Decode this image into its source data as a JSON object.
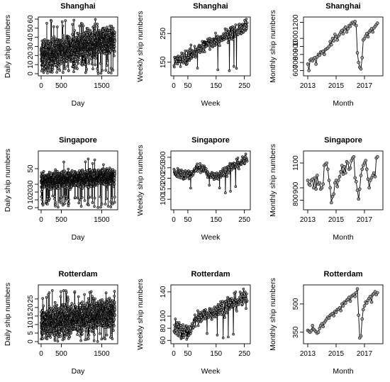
{
  "chart_data": [
    {
      "type": "line",
      "title": "Shanghai",
      "xlabel": "Day",
      "ylabel": "Daily ship numbers",
      "xlim": [
        0,
        1826
      ],
      "ylim": [
        0,
        60
      ],
      "xticks": [
        {
          "v": 0,
          "label": "0"
        },
        {
          "v": 500,
          "label": "500"
        },
        {
          "v": 1500,
          "label": "1500"
        }
      ],
      "yticks": [
        {
          "v": 0,
          "label": "0"
        },
        {
          "v": 10,
          "label": "10"
        },
        {
          "v": 20,
          "label": "20"
        },
        {
          "v": 30,
          "label": "30"
        },
        {
          "v": 40,
          "label": "40"
        },
        {
          "v": 50,
          "label": "50"
        },
        {
          "v": 60,
          "label": "60"
        }
      ],
      "series": [
        {
          "n": 1826,
          "x_start": 1,
          "x_step": 1,
          "trend": [
            [
              0,
              20
            ],
            [
              1826,
              38
            ]
          ],
          "noise": 7,
          "drop_chance": 0.03,
          "drop_to": [
            0,
            12
          ],
          "spike_chance": 0.01,
          "spike_to": [
            50,
            60
          ]
        }
      ]
    },
    {
      "type": "line",
      "title": "Shanghai",
      "xlabel": "Week",
      "ylabel": "Weekly ship numbers",
      "xlim": [
        0,
        261
      ],
      "ylim": [
        110,
        300
      ],
      "xticks": [
        {
          "v": 0,
          "label": "0"
        },
        {
          "v": 50,
          "label": "50"
        },
        {
          "v": 150,
          "label": "150"
        },
        {
          "v": 250,
          "label": "250"
        }
      ],
      "yticks": [
        {
          "v": 150,
          "label": "150"
        },
        {
          "v": 250,
          "label": "250"
        }
      ],
      "series": [
        {
          "n": 260,
          "x_start": 1,
          "x_step": 1,
          "trend": [
            [
              0,
              150
            ],
            [
              40,
              165
            ],
            [
              130,
              220
            ],
            [
              200,
              250
            ],
            [
              260,
              275
            ]
          ],
          "noise": 12,
          "drop_chance": 0.02,
          "drop_to": [
            120,
            145
          ],
          "spike_chance": 0.0,
          "spike_to": [
            0,
            0
          ]
        }
      ]
    },
    {
      "type": "line",
      "title": "Shanghai",
      "xlabel": "Month",
      "ylabel": "Monthly ship numbers",
      "xlim": [
        2012.9,
        2018.1
      ],
      "ylim": [
        560,
        1240
      ],
      "xticks": [
        {
          "v": 2013,
          "label": "2013"
        },
        {
          "v": 2015,
          "label": "2015"
        },
        {
          "v": 2017,
          "label": "2017"
        }
      ],
      "yticks": [
        {
          "v": 600,
          "label": "600"
        },
        {
          "v": 700,
          "label": "700"
        },
        {
          "v": 800,
          "label": "800"
        },
        {
          "v": 900,
          "label": "900"
        },
        {
          "v": 1000,
          "label": "1000"
        },
        {
          "v": 1200,
          "label": "1200"
        }
      ],
      "series": [
        {
          "x": [
            2013.0,
            2013.083,
            2013.167,
            2013.25,
            2013.333,
            2013.417,
            2013.5,
            2013.583,
            2013.667,
            2013.75,
            2013.833,
            2013.917,
            2014.0,
            2014.083,
            2014.167,
            2014.25,
            2014.333,
            2014.417,
            2014.5,
            2014.583,
            2014.667,
            2014.75,
            2014.833,
            2014.917,
            2015.0,
            2015.083,
            2015.167,
            2015.25,
            2015.333,
            2015.417,
            2015.5,
            2015.583,
            2015.667,
            2015.75,
            2015.833,
            2015.917,
            2016.0,
            2016.083,
            2016.167,
            2016.25,
            2016.333,
            2016.417,
            2016.5,
            2016.583,
            2016.667,
            2016.75,
            2016.833,
            2016.917,
            2017.0,
            2017.083,
            2017.167,
            2017.25,
            2017.333,
            2017.417,
            2017.5,
            2017.583,
            2017.667,
            2017.75,
            2017.833,
            2017.917
          ],
          "values": [
            680,
            600,
            730,
            740,
            720,
            750,
            760,
            680,
            770,
            800,
            790,
            830,
            820,
            840,
            800,
            860,
            870,
            880,
            900,
            960,
            920,
            1000,
            970,
            1050,
            1020,
            980,
            1030,
            1050,
            1080,
            1100,
            1060,
            1120,
            1140,
            1080,
            1120,
            1160,
            1150,
            1190,
            1200,
            1180,
            1210,
            1160,
            820,
            700,
            640,
            620,
            760,
            980,
            1000,
            1030,
            1060,
            1020,
            1080,
            1100,
            1120,
            1080,
            1130,
            1150,
            1170,
            1190
          ]
        }
      ]
    },
    {
      "type": "line",
      "title": "Singapore",
      "xlabel": "Day",
      "ylabel": "Daily ship numbers",
      "xlim": [
        0,
        1826
      ],
      "ylim": [
        0,
        70
      ],
      "xticks": [
        {
          "v": 0,
          "label": "0"
        },
        {
          "v": 500,
          "label": "500"
        },
        {
          "v": 1500,
          "label": "1500"
        }
      ],
      "yticks": [
        {
          "v": 0,
          "label": "0"
        },
        {
          "v": 10,
          "label": "10"
        },
        {
          "v": 20,
          "label": "20"
        },
        {
          "v": 30,
          "label": "30"
        },
        {
          "v": 50,
          "label": "50"
        }
      ],
      "series": [
        {
          "n": 1826,
          "x_start": 1,
          "x_step": 1,
          "trend": [
            [
              0,
              34
            ],
            [
              1826,
              40
            ]
          ],
          "noise": 5,
          "drop_chance": 0.03,
          "drop_to": [
            0,
            15
          ],
          "spike_chance": 0.003,
          "spike_to": [
            55,
            68
          ]
        }
      ]
    },
    {
      "type": "line",
      "title": "Singapore",
      "xlabel": "Week",
      "ylabel": "Weekly ship numbers",
      "xlim": [
        0,
        261
      ],
      "ylim": [
        60,
        320
      ],
      "xticks": [
        {
          "v": 0,
          "label": "0"
        },
        {
          "v": 50,
          "label": "50"
        },
        {
          "v": 150,
          "label": "150"
        },
        {
          "v": 250,
          "label": "250"
        }
      ],
      "yticks": [
        {
          "v": 100,
          "label": "100"
        },
        {
          "v": 150,
          "label": "150"
        },
        {
          "v": 200,
          "label": "200"
        },
        {
          "v": 250,
          "label": "250"
        },
        {
          "v": 300,
          "label": "300"
        }
      ],
      "series": [
        {
          "n": 260,
          "x_start": 1,
          "x_step": 1,
          "trend": [
            [
              0,
              225
            ],
            [
              60,
              215
            ],
            [
              80,
              250
            ],
            [
              110,
              245
            ],
            [
              120,
              215
            ],
            [
              160,
              215
            ],
            [
              200,
              250
            ],
            [
              260,
              290
            ]
          ],
          "noise": 12,
          "drop_chance": 0.02,
          "drop_to": [
            120,
            170
          ],
          "spike_chance": 0.0,
          "spike_to": [
            0,
            0
          ]
        }
      ]
    },
    {
      "type": "line",
      "title": "Singapore",
      "xlabel": "Month",
      "ylabel": "Monthly ship numbers",
      "xlim": [
        2012.9,
        2018.1
      ],
      "ylim": [
        740,
        1180
      ],
      "xticks": [
        {
          "v": 2013,
          "label": "2013"
        },
        {
          "v": 2015,
          "label": "2015"
        },
        {
          "v": 2017,
          "label": "2017"
        }
      ],
      "yticks": [
        {
          "v": 800,
          "label": "800"
        },
        {
          "v": 900,
          "label": "900"
        },
        {
          "v": 1100,
          "label": "1100"
        }
      ],
      "series": [
        {
          "x": [
            2013.0,
            2013.083,
            2013.167,
            2013.25,
            2013.333,
            2013.417,
            2013.5,
            2013.583,
            2013.667,
            2013.75,
            2013.833,
            2013.917,
            2014.0,
            2014.083,
            2014.167,
            2014.25,
            2014.333,
            2014.417,
            2014.5,
            2014.583,
            2014.667,
            2014.75,
            2014.833,
            2014.917,
            2015.0,
            2015.083,
            2015.167,
            2015.25,
            2015.333,
            2015.417,
            2015.5,
            2015.583,
            2015.667,
            2015.75,
            2015.833,
            2015.917,
            2016.0,
            2016.083,
            2016.167,
            2016.25,
            2016.333,
            2016.417,
            2016.5,
            2016.583,
            2016.667,
            2016.75,
            2016.833,
            2016.917,
            2017.0,
            2017.083,
            2017.167,
            2017.25,
            2017.333,
            2017.417,
            2017.5,
            2017.583,
            2017.667,
            2017.75,
            2017.833,
            2017.917
          ],
          "values": [
            960,
            930,
            920,
            960,
            970,
            900,
            980,
            890,
            1000,
            930,
            940,
            890,
            900,
            930,
            1080,
            1090,
            1100,
            1050,
            960,
            900,
            780,
            830,
            850,
            940,
            960,
            910,
            960,
            990,
            1030,
            1080,
            1010,
            1070,
            1020,
            1110,
            1100,
            1050,
            1060,
            1120,
            1140,
            1150,
            980,
            950,
            880,
            810,
            890,
            1000,
            1050,
            1080,
            1100,
            1120,
            1050,
            970,
            900,
            960,
            980,
            1000,
            1020,
            990,
            1140,
            1150
          ]
        }
      ]
    },
    {
      "type": "line",
      "title": "Rotterdam",
      "xlabel": "Day",
      "ylabel": "Daily ship numbers",
      "xlim": [
        0,
        1826
      ],
      "ylim": [
        0,
        32
      ],
      "xticks": [
        {
          "v": 0,
          "label": "0"
        },
        {
          "v": 500,
          "label": "500"
        },
        {
          "v": 1500,
          "label": "1500"
        }
      ],
      "yticks": [
        {
          "v": 0,
          "label": "0"
        },
        {
          "v": 5,
          "label": "5"
        },
        {
          "v": 10,
          "label": "10"
        },
        {
          "v": 15,
          "label": "15"
        },
        {
          "v": 20,
          "label": "20"
        },
        {
          "v": 25,
          "label": "25"
        }
      ],
      "series": [
        {
          "n": 1826,
          "x_start": 1,
          "x_step": 1,
          "trend": [
            [
              0,
              11
            ],
            [
              1826,
              17
            ]
          ],
          "noise": 4,
          "drop_chance": 0.02,
          "drop_to": [
            0,
            5
          ],
          "spike_chance": 0.01,
          "spike_to": [
            24,
            30
          ]
        }
      ]
    },
    {
      "type": "line",
      "title": "Rotterdam",
      "xlabel": "Week",
      "ylabel": "Weekly ship numbers",
      "xlim": [
        0,
        261
      ],
      "ylim": [
        58,
        148
      ],
      "xticks": [
        {
          "v": 0,
          "label": "0"
        },
        {
          "v": 50,
          "label": "50"
        },
        {
          "v": 150,
          "label": "150"
        },
        {
          "v": 250,
          "label": "250"
        }
      ],
      "yticks": [
        {
          "v": 60,
          "label": "60"
        },
        {
          "v": 80,
          "label": "80"
        },
        {
          "v": 100,
          "label": "100"
        },
        {
          "v": 140,
          "label": "140"
        }
      ],
      "series": [
        {
          "n": 260,
          "x_start": 1,
          "x_step": 1,
          "trend": [
            [
              0,
              82
            ],
            [
              50,
              72
            ],
            [
              80,
              95
            ],
            [
              150,
              110
            ],
            [
              200,
              120
            ],
            [
              260,
              130
            ]
          ],
          "noise": 7,
          "drop_chance": 0.02,
          "drop_to": [
            62,
            72
          ],
          "spike_chance": 0.0,
          "spike_to": [
            0,
            0
          ]
        }
      ]
    },
    {
      "type": "line",
      "title": "Rotterdam",
      "xlabel": "Month",
      "ylabel": "Monthly ship numbers",
      "xlim": [
        2012.9,
        2018.1
      ],
      "ylim": [
        300,
        590
      ],
      "xticks": [
        {
          "v": 2013,
          "label": "2013"
        },
        {
          "v": 2015,
          "label": "2015"
        },
        {
          "v": 2017,
          "label": "2017"
        }
      ],
      "yticks": [
        {
          "v": 350,
          "label": "350"
        },
        {
          "v": 500,
          "label": "500"
        }
      ],
      "series": [
        {
          "x": [
            2013.0,
            2013.083,
            2013.167,
            2013.25,
            2013.333,
            2013.417,
            2013.5,
            2013.583,
            2013.667,
            2013.75,
            2013.833,
            2013.917,
            2014.0,
            2014.083,
            2014.167,
            2014.25,
            2014.333,
            2014.417,
            2014.5,
            2014.583,
            2014.667,
            2014.75,
            2014.833,
            2014.917,
            2015.0,
            2015.083,
            2015.167,
            2015.25,
            2015.333,
            2015.417,
            2015.5,
            2015.583,
            2015.667,
            2015.75,
            2015.833,
            2015.917,
            2016.0,
            2016.083,
            2016.167,
            2016.25,
            2016.333,
            2016.417,
            2016.5,
            2016.583,
            2016.667,
            2016.75,
            2016.833,
            2016.917,
            2017.0,
            2017.083,
            2017.167,
            2017.25,
            2017.333,
            2017.417,
            2017.5,
            2017.583,
            2017.667,
            2017.75,
            2017.833,
            2017.917
          ],
          "values": [
            360,
            355,
            350,
            358,
            385,
            365,
            360,
            352,
            345,
            350,
            370,
            385,
            395,
            380,
            400,
            410,
            420,
            430,
            425,
            440,
            445,
            450,
            438,
            460,
            455,
            470,
            472,
            480,
            465,
            500,
            490,
            510,
            505,
            520,
            525,
            535,
            515,
            540,
            545,
            550,
            540,
            560,
            580,
            440,
            320,
            330,
            420,
            470,
            490,
            510,
            505,
            520,
            530,
            540,
            510,
            550,
            555,
            565,
            550,
            560
          ]
        }
      ]
    }
  ]
}
